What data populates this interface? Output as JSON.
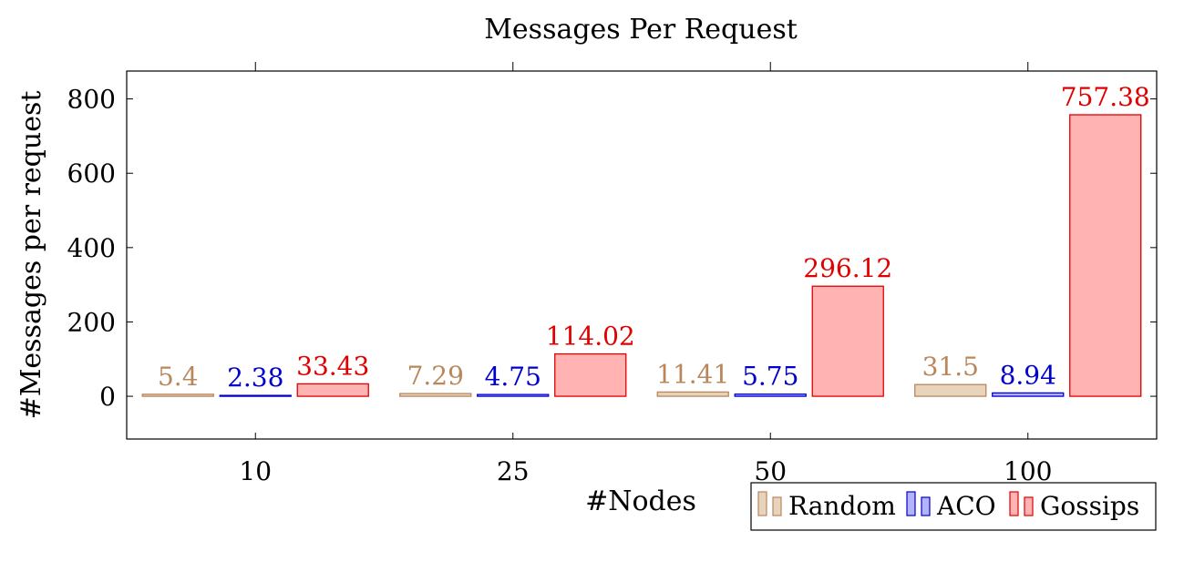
{
  "chart_data": {
    "type": "bar",
    "title": "Messages Per Request",
    "xlabel": "#Nodes",
    "ylabel": "#Messages per request",
    "categories": [
      "10",
      "25",
      "50",
      "100"
    ],
    "series": [
      {
        "name": "Random",
        "values": [
          5.4,
          7.29,
          11.41,
          31.5
        ],
        "labels": [
          "5.4",
          "7.29",
          "11.41",
          "31.5"
        ],
        "fill": "#e8d3bc",
        "stroke": "#b9875c",
        "label_color": "#b9875c"
      },
      {
        "name": "ACO",
        "values": [
          2.38,
          4.75,
          5.75,
          8.94
        ],
        "labels": [
          "2.38",
          "4.75",
          "5.75",
          "8.94"
        ],
        "fill": "#b3b3ff",
        "stroke": "#0000cc",
        "label_color": "#0000cc"
      },
      {
        "name": "Gossips",
        "values": [
          33.43,
          114.02,
          296.12,
          757.38
        ],
        "labels": [
          "33.43",
          "114.02",
          "296.12",
          "757.38"
        ],
        "fill": "#ffb3b3",
        "stroke": "#e00000",
        "label_color": "#e00000"
      }
    ],
    "ylim": [
      -115,
      875
    ],
    "yticks": [
      0,
      200,
      400,
      600,
      800
    ],
    "grid": false,
    "legend_position": "bottom-right"
  }
}
